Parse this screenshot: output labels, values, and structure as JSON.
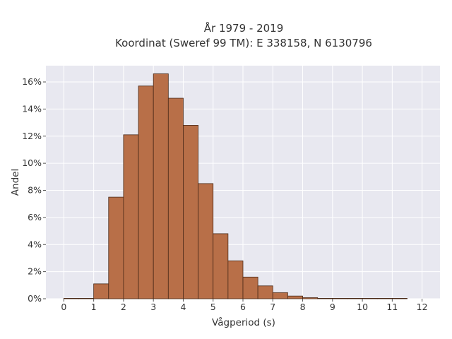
{
  "chart_data": {
    "type": "bar",
    "title": [
      "År 1979 - 2019",
      "Koordinat (Sweref 99 TM): E 338158, N 6130796"
    ],
    "xlabel": "Vågperiod (s)",
    "ylabel": "Andel",
    "xlim": [
      -0.6,
      12.6
    ],
    "ylim": [
      0,
      17.2
    ],
    "x_ticks": [
      0,
      1,
      2,
      3,
      4,
      5,
      6,
      7,
      8,
      9,
      10,
      11,
      12
    ],
    "x_tick_labels": [
      "0",
      "1",
      "2",
      "3",
      "4",
      "5",
      "6",
      "7",
      "8",
      "9",
      "10",
      "11",
      "12"
    ],
    "y_ticks": [
      0,
      2,
      4,
      6,
      8,
      10,
      12,
      14,
      16
    ],
    "y_tick_labels": [
      "0%",
      "2%",
      "4%",
      "6%",
      "8%",
      "10%",
      "12%",
      "14%",
      "16%"
    ],
    "grid": true,
    "bin_width": 0.5,
    "bins": [
      {
        "start": 0.0,
        "value": 0.02
      },
      {
        "start": 0.5,
        "value": 0.0
      },
      {
        "start": 1.0,
        "value": 1.1
      },
      {
        "start": 1.5,
        "value": 7.5
      },
      {
        "start": 2.0,
        "value": 12.1
      },
      {
        "start": 2.5,
        "value": 15.7
      },
      {
        "start": 3.0,
        "value": 16.6
      },
      {
        "start": 3.5,
        "value": 14.8
      },
      {
        "start": 4.0,
        "value": 12.8
      },
      {
        "start": 4.5,
        "value": 8.5
      },
      {
        "start": 5.0,
        "value": 4.8
      },
      {
        "start": 5.5,
        "value": 2.8
      },
      {
        "start": 6.0,
        "value": 1.6
      },
      {
        "start": 6.5,
        "value": 0.95
      },
      {
        "start": 7.0,
        "value": 0.45
      },
      {
        "start": 7.5,
        "value": 0.2
      },
      {
        "start": 8.0,
        "value": 0.08
      },
      {
        "start": 8.5,
        "value": 0.03
      },
      {
        "start": 9.0,
        "value": 0.02
      },
      {
        "start": 9.5,
        "value": 0.02
      },
      {
        "start": 10.0,
        "value": 0.02
      },
      {
        "start": 10.5,
        "value": 0.02
      },
      {
        "start": 11.0,
        "value": 0.02
      }
    ],
    "colors": {
      "bar_fill": "#b86f48",
      "bar_edge": "#4a2a18",
      "plot_background": "#e8e8f0",
      "grid": "#ffffff"
    }
  }
}
